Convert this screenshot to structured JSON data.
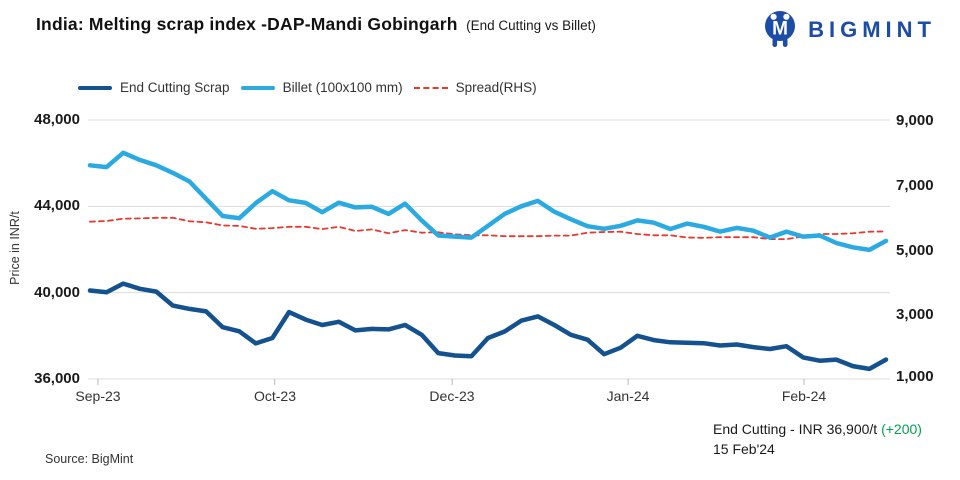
{
  "header": {
    "title": "India: Melting scrap index -DAP-Mandi Gobingarh",
    "subtitle": "(End Cutting vs Billet)",
    "brand": "BIGMINT"
  },
  "annotation": {
    "label": "End Cutting - INR 36,900/t",
    "change": "(+200)",
    "date": "15 Feb'24"
  },
  "source_note": "Source: BigMint",
  "chart_data": {
    "type": "line",
    "title": "India: Melting scrap index -DAP-Mandi Gobingarh (End Cutting vs Billet)",
    "ylabel_left": "Price in INR/t",
    "grid": "horizontal-only",
    "legend_position": "top-left",
    "x_axis": {
      "labels": [
        "Sep-23",
        "Oct-23",
        "Dec-23",
        "Jan-24",
        "Feb-24"
      ],
      "positions": [
        0.01,
        0.232,
        0.455,
        0.676,
        0.897
      ]
    },
    "y_left": {
      "min": 36000,
      "max": 48000,
      "tick_values": [
        48000,
        44000,
        40000,
        36000
      ],
      "labels": [
        "48,000",
        "44,000",
        "40,000",
        "36,000"
      ]
    },
    "y_right": {
      "min": 1000,
      "max": 9000,
      "tick_values": [
        9000,
        7000,
        5000,
        3000,
        1000
      ],
      "labels": [
        "9,000",
        "7,000",
        "5,000",
        "3,000",
        "1,000"
      ]
    },
    "series": [
      {
        "name": "End Cutting Scrap",
        "axis": "left",
        "color": "#14518F",
        "width": 4.5,
        "dashed": false,
        "values": [
          40100,
          40020,
          40420,
          40180,
          40050,
          39400,
          39250,
          39130,
          38400,
          38210,
          37650,
          37900,
          39100,
          38750,
          38500,
          38650,
          38250,
          38320,
          38300,
          38500,
          38050,
          37200,
          37090,
          37050,
          37900,
          38200,
          38700,
          38900,
          38500,
          38050,
          37820,
          37150,
          37450,
          38000,
          37800,
          37700,
          37680,
          37660,
          37550,
          37600,
          37480,
          37390,
          37520,
          37000,
          36850,
          36900,
          36600,
          36470,
          36900
        ]
      },
      {
        "name": "Billet (100x100 mm)",
        "axis": "left",
        "color": "#2BAAE2",
        "width": 4.5,
        "dashed": false,
        "values": [
          45900,
          45820,
          46480,
          46150,
          45900,
          45550,
          45150,
          44350,
          43550,
          43450,
          44150,
          44700,
          44280,
          44160,
          43730,
          44170,
          43950,
          43980,
          43650,
          44120,
          43350,
          42650,
          42600,
          42550,
          43100,
          43650,
          44000,
          44250,
          43750,
          43400,
          43080,
          42960,
          43100,
          43350,
          43240,
          42950,
          43200,
          43050,
          42830,
          43000,
          42870,
          42550,
          42830,
          42600,
          42650,
          42300,
          42100,
          41980,
          42400
        ]
      },
      {
        "name": "Spread(RHS)",
        "axis": "right",
        "color": "#E63A2E",
        "width": 1.8,
        "dashed": true,
        "values": [
          5860,
          5880,
          5950,
          5960,
          5980,
          5980,
          5870,
          5840,
          5740,
          5730,
          5640,
          5660,
          5700,
          5700,
          5630,
          5700,
          5570,
          5620,
          5500,
          5600,
          5520,
          5530,
          5470,
          5440,
          5440,
          5410,
          5410,
          5410,
          5430,
          5430,
          5520,
          5540,
          5550,
          5480,
          5440,
          5440,
          5370,
          5360,
          5380,
          5380,
          5380,
          5320,
          5320,
          5400,
          5480,
          5480,
          5500,
          5550,
          5560
        ]
      }
    ]
  }
}
